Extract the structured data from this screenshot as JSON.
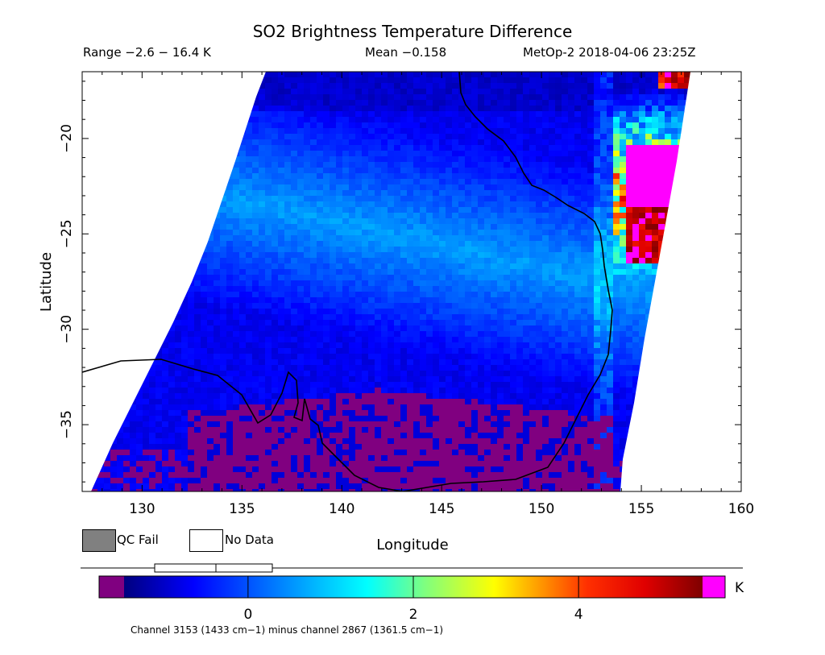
{
  "title": "SO2 Brightness Temperature Difference",
  "subtitle": {
    "range": "Range −2.6 − 16.4 K",
    "mean": "Mean −0.158",
    "satellite_time": "MetOp-2 2018-04-06 23:25Z"
  },
  "map": {
    "lon_range": [
      127,
      160
    ],
    "lat_range": [
      -38.5,
      -16.5
    ],
    "x_ticks": [
      130,
      135,
      140,
      145,
      150,
      155,
      160
    ],
    "x_tick_labels": [
      "130",
      "135",
      "140",
      "145",
      "150",
      "155",
      "160"
    ],
    "y_ticks": [
      -20,
      -25,
      -30,
      -35
    ],
    "y_tick_labels": [
      "−20",
      "−25",
      "−30",
      "−35"
    ],
    "xlabel": "Longitude",
    "ylabel": "Latitude",
    "coastline_color": "#000000"
  },
  "legend": {
    "qc_fail_label": "QC Fail",
    "qc_fail_color": "#808080",
    "no_data_label": "No Data",
    "no_data_color": "#ffffff"
  },
  "colorbar": {
    "min": -1.5,
    "max": 5.5,
    "ticks": [
      0,
      2,
      4
    ],
    "tick_labels": [
      "0",
      "2",
      "4"
    ],
    "unit": "K",
    "under_color": "#800080",
    "over_color": "#ff00ff"
  },
  "caption": "Channel 3153 (1433 cm−1) minus channel 2867 (1361.5 cm−1)"
}
